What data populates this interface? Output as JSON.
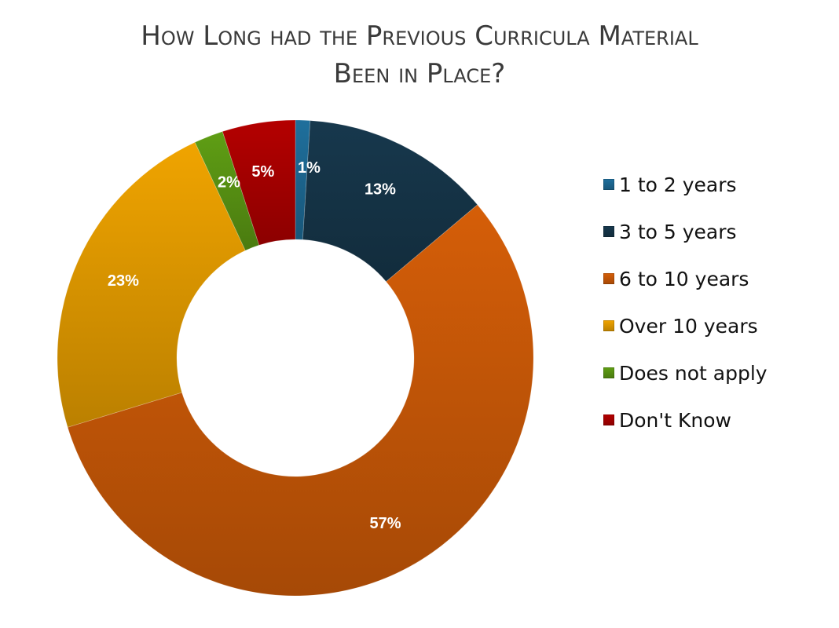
{
  "title": {
    "line1": "How Long had the Previous Curricula Material",
    "line2": "Been in Place?"
  },
  "chart_data": {
    "type": "pie",
    "style": "donut",
    "title": "How Long had the Previous Curricula Material Been in Place?",
    "legend_position": "right",
    "slices": [
      {
        "name": "1 to 2 years",
        "value": 1,
        "label": "1%",
        "color": "#1f6f9c"
      },
      {
        "name": "3 to 5 years",
        "value": 13,
        "label": "13%",
        "color": "#17384d"
      },
      {
        "name": "6 to 10 years",
        "value": 57,
        "label": "57%",
        "color": "#d55e08"
      },
      {
        "name": "Over 10 years",
        "value": 23,
        "label": "23%",
        "color": "#f0a400"
      },
      {
        "name": "Does not apply",
        "value": 2,
        "label": "2%",
        "color": "#5f9e14"
      },
      {
        "name": "Don't Know",
        "value": 5,
        "label": "5%",
        "color": "#b40000"
      }
    ]
  }
}
